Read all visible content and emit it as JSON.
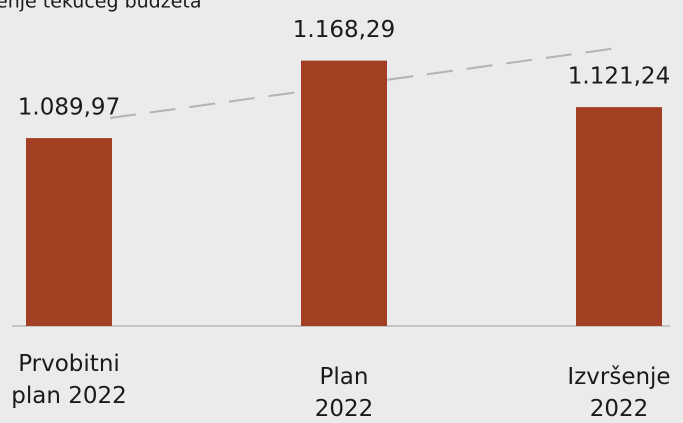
{
  "chart_data": {
    "type": "bar",
    "title": "enje tekućeg budžeta",
    "categories": [
      "Prvobitni plan 2022",
      "Plan 2022",
      "Izvršenje 2022"
    ],
    "values": [
      1089.97,
      1168.29,
      1121.24
    ],
    "value_labels": [
      "1.089,97",
      "1.168,29",
      "1.121,24"
    ],
    "color": "#a33f23",
    "ylim": [
      900,
      1180
    ]
  }
}
